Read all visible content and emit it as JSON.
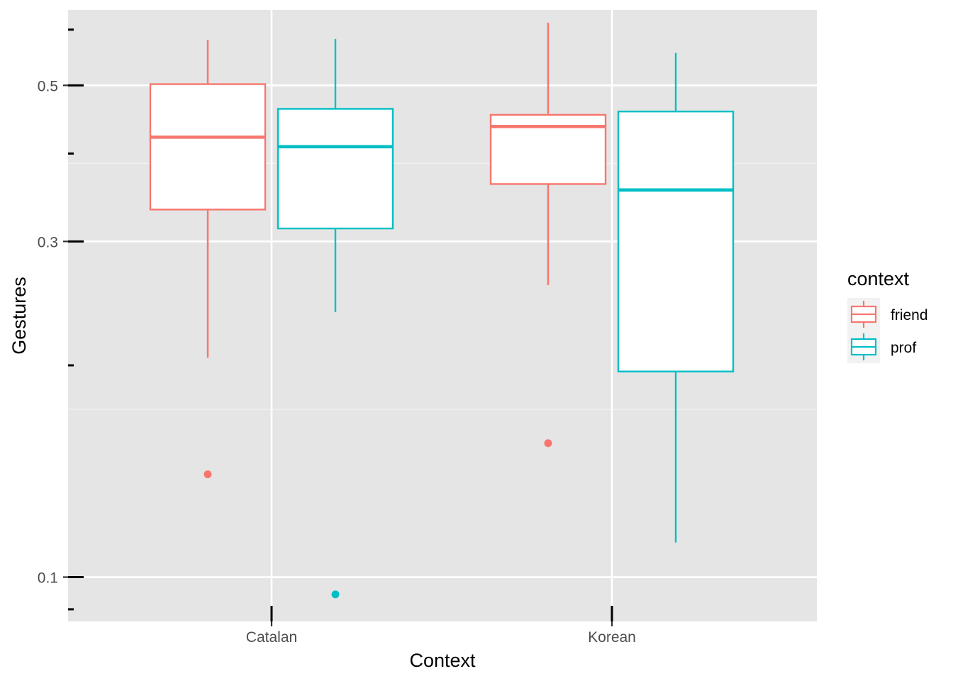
{
  "chart_data": {
    "type": "boxplot",
    "xlabel": "Context",
    "ylabel": "Gestures",
    "categories": [
      "Catalan",
      "Korean"
    ],
    "y_scale": "log",
    "ylim": [
      0.0865,
      0.64
    ],
    "y_ticks": [
      {
        "value": 0.1,
        "label": "0.1"
      },
      {
        "value": 0.3,
        "label": "0.3"
      },
      {
        "value": 0.5,
        "label": "0.5"
      }
    ],
    "y_minor_ticks": [
      0.09,
      0.2,
      0.4,
      0.6
    ],
    "grid": true,
    "legend": {
      "title": "context",
      "position": "right"
    },
    "series": [
      {
        "name": "friend",
        "color": "#F8766D",
        "boxes": [
          {
            "category": "Catalan",
            "whisker_low": 0.205,
            "q1": 0.333,
            "median": 0.422,
            "q3": 0.502,
            "whisker_high": 0.58,
            "outliers": [
              0.14
            ]
          },
          {
            "category": "Korean",
            "whisker_low": 0.26,
            "q1": 0.362,
            "median": 0.437,
            "q3": 0.454,
            "whisker_high": 0.614,
            "outliers": [
              0.155
            ]
          }
        ]
      },
      {
        "name": "prof",
        "color": "#00BFC4",
        "boxes": [
          {
            "category": "Catalan",
            "whisker_low": 0.238,
            "q1": 0.313,
            "median": 0.409,
            "q3": 0.463,
            "whisker_high": 0.582,
            "outliers": [
              0.0945
            ]
          },
          {
            "category": "Korean",
            "whisker_low": 0.112,
            "q1": 0.196,
            "median": 0.355,
            "q3": 0.459,
            "whisker_high": 0.556,
            "outliers": []
          }
        ]
      }
    ]
  }
}
